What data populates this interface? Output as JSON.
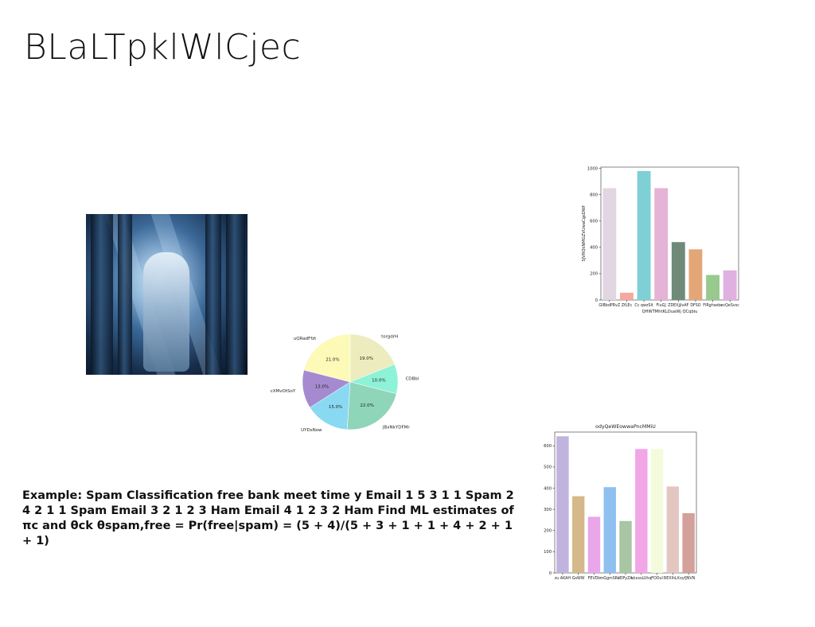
{
  "slide": {
    "title": "BLaLTpklWlCjec",
    "body_text": "Example: Spam Classification free bank meet time y Email 1 5 3 1 1 Spam 2 4 2 1 1 Spam Email 3 2 1 2 3 Ham Email 4 1 2 3 2 Ham Find ML estimates of πc and θck θspam,free = Pr(free|spam) = (5 + 4)/(5 + 3 + 1 + 1 + 4 + 2 + 1 + 1)"
  },
  "chart_data": [
    {
      "type": "pie",
      "labels": [
        "torgdrH",
        "CDBbi",
        "JBxNkYDFMr",
        "UYDsNow",
        "cXMvOtSoY",
        "uQRadFfzt"
      ],
      "values": [
        19.0,
        10.0,
        22.0,
        15.0,
        13.0,
        21.0
      ],
      "value_labels": [
        "19.0%",
        "10.0%",
        "22.0%",
        "15.0%",
        "13.0%",
        "21.0%"
      ],
      "colors": [
        "#ececbe",
        "#8ef2d6",
        "#8fd5ba",
        "#8ad9f2",
        "#a58ad0",
        "#fdfab8"
      ]
    },
    {
      "type": "bar",
      "title": "",
      "ylabel": "SJVRQkNMGZVUwaCgsDWf",
      "xlabel": "QHWTMhtKLOuaWj QCqbiu",
      "categories": [
        "GIBbdPRvZ",
        "ZfLEc",
        "Cc qwzSlt",
        "FluGJ",
        "ZDEXjjIvAF",
        "DFSO",
        "FlRghsebc",
        "ecQeSvsc"
      ],
      "values": [
        850,
        55,
        980,
        850,
        440,
        385,
        190,
        225
      ],
      "colors": [
        "#e2d6e2",
        "#f7a79e",
        "#7fd0d6",
        "#e5b3d5",
        "#6f8a79",
        "#e3a677",
        "#98c98f",
        "#e0b0e0"
      ],
      "yticks": [
        0,
        200,
        400,
        600,
        800,
        1000
      ],
      "ylim": [
        0,
        1010
      ]
    },
    {
      "type": "bar",
      "title": "odyQeWEowwaPncMMiU",
      "ylabel": "",
      "xlabel": "",
      "categories": [
        "zu AKAH",
        "GsWW",
        "FEVDk",
        "mGgmSRe",
        "IDPyZA",
        "xkxssLUhq",
        "FOOul",
        "REXlhLXo",
        "yfJNVN"
      ],
      "values": [
        645,
        362,
        265,
        405,
        245,
        585,
        585,
        408,
        282
      ],
      "colors": [
        "#c0b3de",
        "#d6b98a",
        "#eaa6ea",
        "#8ec0f0",
        "#a9c6a4",
        "#f1a6e6",
        "#f3fbdc",
        "#e4c6c0",
        "#d4a09a"
      ],
      "yticks": [
        0,
        100,
        200,
        300,
        400,
        500,
        600
      ],
      "ylim": [
        0,
        665
      ]
    }
  ]
}
